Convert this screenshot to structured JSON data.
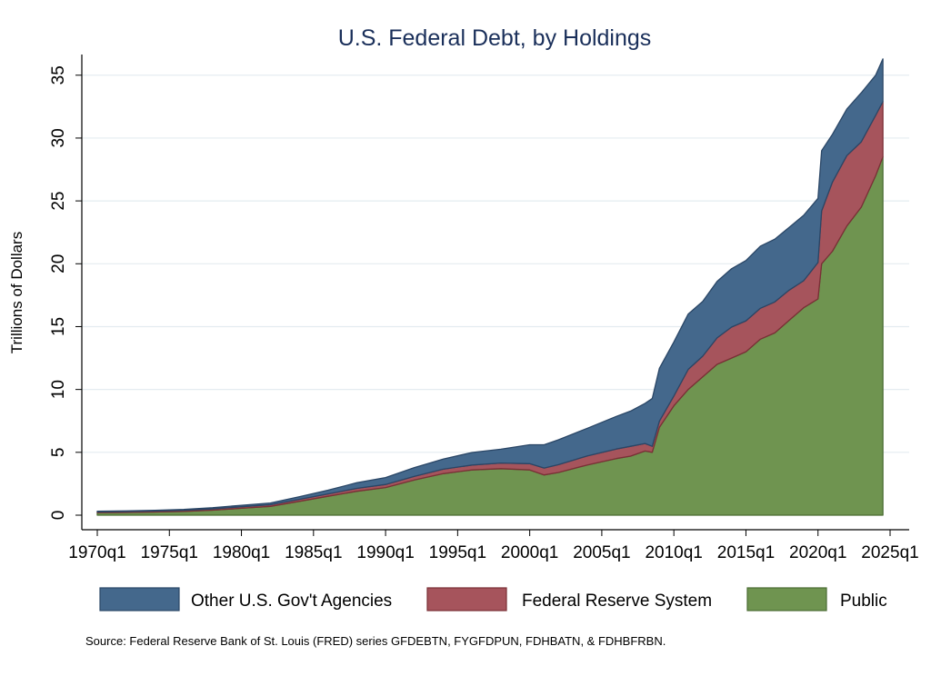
{
  "chart_data": {
    "type": "area",
    "stacked": true,
    "title": "U.S. Federal Debt, by Holdings",
    "ylabel": "Trillions of Dollars",
    "xlabel": "",
    "ylim": [
      0,
      36.5
    ],
    "yticks": [
      0,
      5,
      10,
      15,
      20,
      25,
      30,
      35
    ],
    "xlim": [
      "1970q1",
      "2025q1"
    ],
    "xticks": [
      "1970q1",
      "1975q1",
      "1980q1",
      "1985q1",
      "1990q1",
      "1995q1",
      "2000q1",
      "2005q1",
      "2010q1",
      "2015q1",
      "2020q1",
      "2025q1"
    ],
    "grid": "horizontal",
    "legend_position": "bottom",
    "x": [
      "1970q1",
      "1972q1",
      "1974q1",
      "1976q1",
      "1978q1",
      "1980q1",
      "1982q1",
      "1984q1",
      "1986q1",
      "1988q1",
      "1990q1",
      "1992q1",
      "1994q1",
      "1996q1",
      "1998q1",
      "2000q1",
      "2001q1",
      "2002q1",
      "2004q1",
      "2006q1",
      "2007q1",
      "2008q1",
      "2008q3",
      "2009q1",
      "2010q1",
      "2011q1",
      "2012q1",
      "2013q1",
      "2014q1",
      "2015q1",
      "2016q1",
      "2017q1",
      "2018q1",
      "2019q1",
      "2020q1",
      "2020q2",
      "2021q1",
      "2022q1",
      "2023q1",
      "2024q1",
      "2024q3"
    ],
    "series": [
      {
        "name": "Public",
        "color": "#6f9450",
        "values": [
          0.2,
          0.22,
          0.25,
          0.3,
          0.4,
          0.55,
          0.7,
          1.1,
          1.5,
          1.9,
          2.2,
          2.8,
          3.3,
          3.6,
          3.7,
          3.6,
          3.2,
          3.4,
          4.0,
          4.5,
          4.7,
          5.1,
          5.0,
          7.0,
          8.7,
          10.0,
          11.0,
          12.0,
          12.5,
          13.0,
          14.0,
          14.5,
          15.5,
          16.5,
          17.2,
          20.0,
          21.0,
          23.0,
          24.5,
          27.0,
          28.5
        ]
      },
      {
        "name": "Federal Reserve System",
        "color": "#a6545c",
        "values": [
          0.06,
          0.07,
          0.08,
          0.09,
          0.1,
          0.12,
          0.13,
          0.16,
          0.19,
          0.23,
          0.24,
          0.29,
          0.36,
          0.39,
          0.45,
          0.5,
          0.55,
          0.62,
          0.72,
          0.76,
          0.78,
          0.6,
          0.48,
          0.49,
          0.78,
          1.6,
          1.65,
          2.1,
          2.46,
          2.46,
          2.46,
          2.46,
          2.4,
          2.15,
          2.9,
          4.2,
          5.5,
          5.6,
          5.2,
          4.8,
          4.4
        ]
      },
      {
        "name": "Other U.S. Gov't Agencies",
        "color": "#44688c",
        "values": [
          0.05,
          0.05,
          0.06,
          0.07,
          0.09,
          0.12,
          0.14,
          0.2,
          0.3,
          0.45,
          0.55,
          0.7,
          0.8,
          1.0,
          1.1,
          1.5,
          1.85,
          1.98,
          2.2,
          2.6,
          2.8,
          3.2,
          3.8,
          4.2,
          4.3,
          4.4,
          4.35,
          4.5,
          4.64,
          4.8,
          4.94,
          5.0,
          5.0,
          5.2,
          5.1,
          4.8,
          3.8,
          3.7,
          3.9,
          3.2,
          3.4
        ]
      }
    ],
    "legend": [
      {
        "label": "Other U.S. Gov't Agencies",
        "color": "#44688c",
        "edge": "#2a4666"
      },
      {
        "label": "Federal Reserve System",
        "color": "#a6545c",
        "edge": "#7a2f36"
      },
      {
        "label": "Public",
        "color": "#6f9450",
        "edge": "#4a6c32"
      }
    ],
    "source": "Source: Federal Reserve Bank of St. Louis (FRED) series GFDEBTN, FYGFDPUN, FDHBATN, & FDHBFRBN."
  }
}
